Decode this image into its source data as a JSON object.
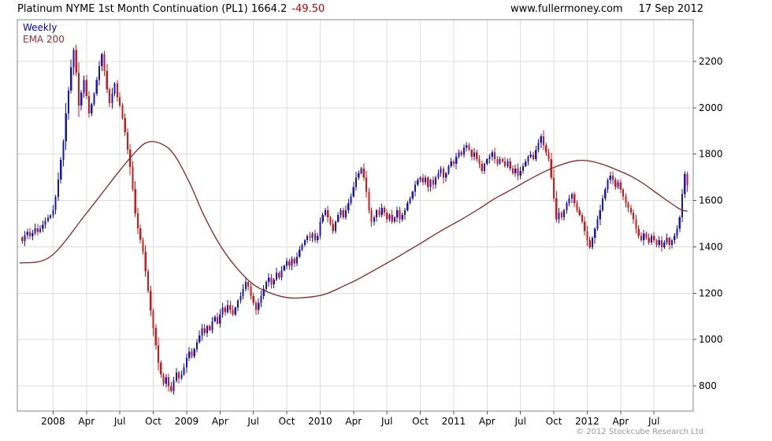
{
  "header": {
    "title": "Platinum NYME 1st Month Continuation (PL1) 1664.2",
    "change": "-49.50",
    "site": "www.fullermoney.com",
    "date": "17 Sep 2012"
  },
  "legend": {
    "line1": "Weekly",
    "line2": "EMA 200"
  },
  "footer": {
    "copyright": "© 2012 Stockcube Research Ltd"
  },
  "colors": {
    "up": "#1414cc",
    "down": "#d81414",
    "ema": "#862626",
    "grid": "#dedede",
    "border": "#8a8a8a",
    "tick": "#555555",
    "text": "#000000",
    "change": "#cc0000",
    "legend_weekly": "#0000cc",
    "legend_ema": "#993333",
    "copyright": "#999999"
  },
  "chart_data": {
    "type": "candlestick",
    "period": "weekly",
    "title": "Platinum NYME 1st Month Continuation (PL1)",
    "last_price": 1664.2,
    "change": -49.5,
    "ylim": [
      690,
      2380
    ],
    "grid": true,
    "y_ticks": [
      800,
      1000,
      1200,
      1400,
      1600,
      1800,
      2000,
      2200
    ],
    "x_ticks": [
      [
        "2008",
        13
      ],
      [
        "Apr",
        26
      ],
      [
        "Jul",
        39
      ],
      [
        "Oct",
        52
      ],
      [
        "2009",
        65
      ],
      [
        "Apr",
        78
      ],
      [
        "Jul",
        91
      ],
      [
        "Oct",
        104
      ],
      [
        "2010",
        117
      ],
      [
        "Apr",
        130
      ],
      [
        "Jul",
        143
      ],
      [
        "Oct",
        156
      ],
      [
        "2011",
        169
      ],
      [
        "Apr",
        182
      ],
      [
        "Jul",
        195
      ],
      [
        "Oct",
        208
      ],
      [
        "2012",
        221
      ],
      [
        "Apr",
        234
      ],
      [
        "Jul",
        247
      ]
    ],
    "series": [
      {
        "name": "Weekly price",
        "type": "candles",
        "weekly_closes": [
          1440,
          1425,
          1450,
          1465,
          1445,
          1460,
          1480,
          1465,
          1478,
          1495,
          1512,
          1525,
          1535,
          1560,
          1615,
          1690,
          1775,
          1855,
          1975,
          2075,
          2175,
          2250,
          2150,
          2010,
          2065,
          2120,
          2050,
          1975,
          2015,
          2060,
          2120,
          2180,
          2230,
          2160,
          2080,
          2020,
          2060,
          2105,
          2045,
          2010,
          1955,
          1895,
          1820,
          1745,
          1650,
          1545,
          1480,
          1430,
          1380,
          1295,
          1210,
          1125,
          1050,
          975,
          900,
          850,
          808,
          838,
          798,
          778,
          822,
          858,
          832,
          850,
          880,
          920,
          948,
          928,
          958,
          988,
          1018,
          1048,
          1028,
          1058,
          1040,
          1078,
          1098,
          1068,
          1108,
          1138,
          1118,
          1148,
          1128,
          1108,
          1138,
          1168,
          1188,
          1218,
          1248,
          1228,
          1188,
          1158,
          1128,
          1158,
          1188,
          1218,
          1248,
          1268,
          1238,
          1258,
          1288,
          1268,
          1298,
          1318,
          1338,
          1318,
          1348,
          1328,
          1358,
          1388,
          1408,
          1428,
          1448,
          1438,
          1458,
          1428,
          1448,
          1508,
          1538,
          1558,
          1528,
          1498,
          1468,
          1508,
          1538,
          1558,
          1528,
          1558,
          1588,
          1618,
          1658,
          1698,
          1718,
          1738,
          1698,
          1638,
          1558,
          1508,
          1528,
          1558,
          1538,
          1568,
          1548,
          1518,
          1538,
          1508,
          1528,
          1558,
          1518,
          1538,
          1558,
          1588,
          1608,
          1638,
          1668,
          1688,
          1698,
          1678,
          1698,
          1658,
          1688,
          1668,
          1698,
          1718,
          1738,
          1698,
          1718,
          1748,
          1768,
          1758,
          1788,
          1808,
          1798,
          1828,
          1838,
          1818,
          1788,
          1808,
          1778,
          1758,
          1728,
          1758,
          1778,
          1788,
          1808,
          1778,
          1758,
          1778,
          1768,
          1748,
          1768,
          1738,
          1718,
          1738,
          1708,
          1728,
          1748,
          1768,
          1788,
          1798,
          1778,
          1818,
          1848,
          1878,
          1838,
          1808,
          1778,
          1698,
          1608,
          1518,
          1548,
          1528,
          1558,
          1588,
          1608,
          1628,
          1588,
          1558,
          1538,
          1508,
          1468,
          1428,
          1398,
          1438,
          1478,
          1518,
          1558,
          1608,
          1648,
          1688,
          1708,
          1688,
          1658,
          1678,
          1648,
          1618,
          1588,
          1568,
          1548,
          1518,
          1478,
          1448,
          1428,
          1458,
          1438,
          1418,
          1448,
          1428,
          1408,
          1428,
          1398,
          1418,
          1438,
          1408,
          1428,
          1448,
          1478,
          1528,
          1628,
          1713.7,
          1664.2
        ]
      },
      {
        "name": "EMA 200",
        "type": "line",
        "points": [
          [
            0,
            1330
          ],
          [
            12,
            1358
          ],
          [
            26,
            1545
          ],
          [
            39,
            1730
          ],
          [
            46,
            1820
          ],
          [
            50,
            1852
          ],
          [
            55,
            1845
          ],
          [
            60,
            1800
          ],
          [
            66,
            1680
          ],
          [
            72,
            1530
          ],
          [
            79,
            1390
          ],
          [
            86,
            1290
          ],
          [
            92,
            1230
          ],
          [
            99,
            1195
          ],
          [
            105,
            1180
          ],
          [
            112,
            1182
          ],
          [
            119,
            1196
          ],
          [
            126,
            1230
          ],
          [
            132,
            1262
          ],
          [
            139,
            1305
          ],
          [
            145,
            1342
          ],
          [
            152,
            1388
          ],
          [
            158,
            1428
          ],
          [
            165,
            1475
          ],
          [
            172,
            1518
          ],
          [
            179,
            1565
          ],
          [
            185,
            1608
          ],
          [
            192,
            1650
          ],
          [
            198,
            1688
          ],
          [
            205,
            1728
          ],
          [
            211,
            1755
          ],
          [
            217,
            1772
          ],
          [
            222,
            1770
          ],
          [
            228,
            1752
          ],
          [
            234,
            1725
          ],
          [
            238,
            1705
          ],
          [
            243,
            1672
          ],
          [
            247,
            1640
          ],
          [
            251,
            1608
          ],
          [
            254,
            1585
          ],
          [
            256,
            1570
          ],
          [
            258,
            1558
          ],
          [
            260,
            1554
          ]
        ]
      }
    ]
  }
}
